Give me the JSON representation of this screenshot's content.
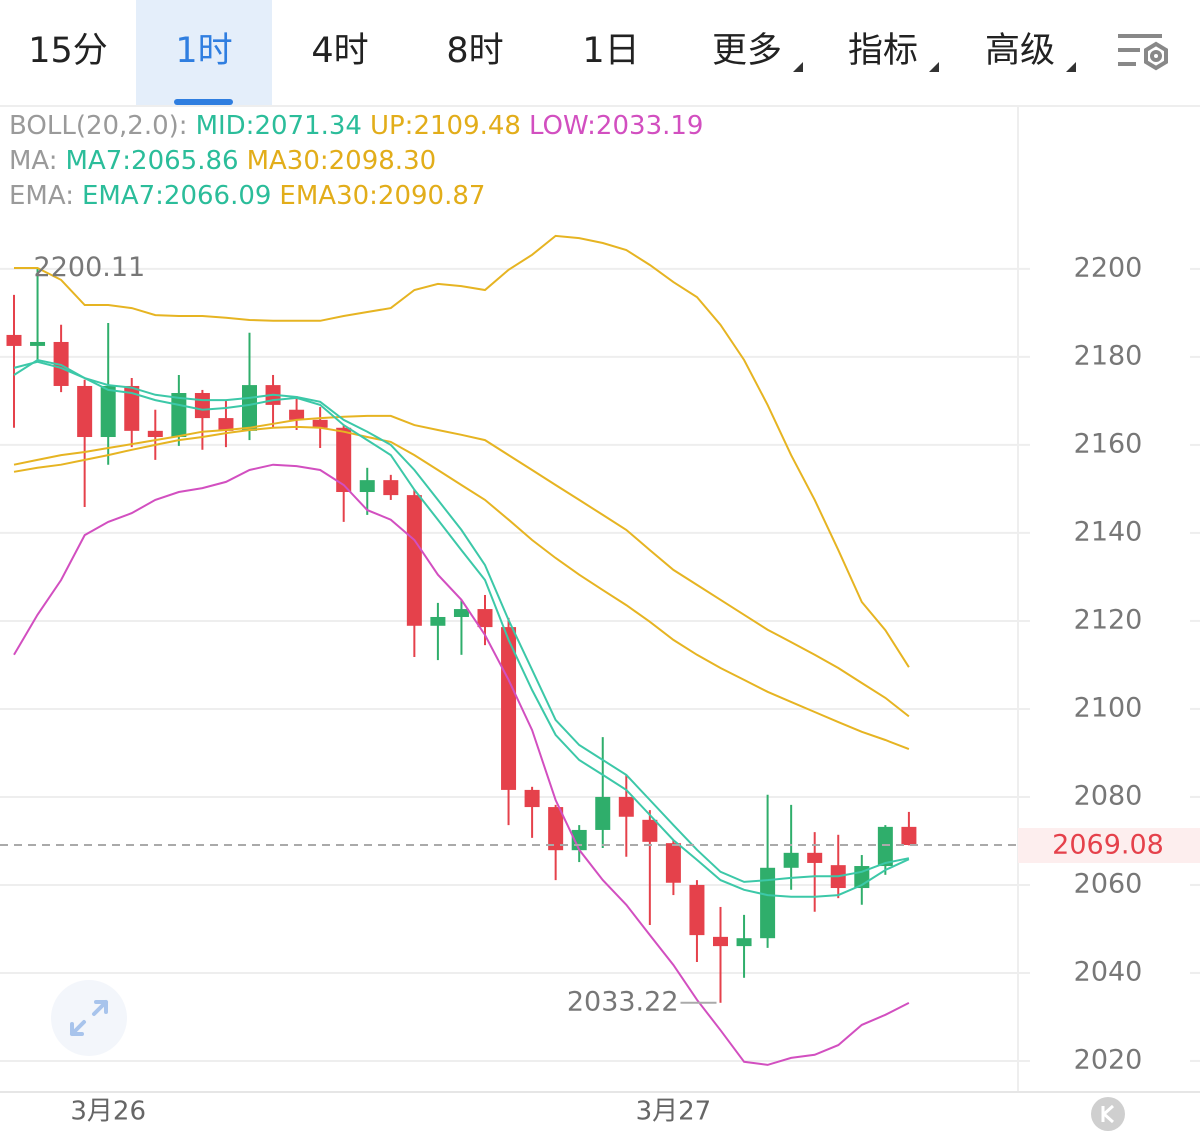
{
  "tabs": [
    "15分",
    "1时",
    "4时",
    "8时",
    "1日"
  ],
  "menus": [
    "更多",
    "指标",
    "高级"
  ],
  "legend": [
    [
      {
        "text": "BOLL(20,2.0):",
        "color": "#9a9a9a"
      },
      {
        "text": "MID:2071.34",
        "color": "#2bbd9a"
      },
      {
        "text": "UP:2109.48",
        "color": "#e2ad1a"
      },
      {
        "text": "LOW:2033.19",
        "color": "#d24fc0"
      }
    ],
    [
      {
        "text": "MA:",
        "color": "#9a9a9a"
      },
      {
        "text": "MA7:2065.86",
        "color": "#2bbd9a"
      },
      {
        "text": "MA30:2098.30",
        "color": "#e2ad1a"
      }
    ],
    [
      {
        "text": "EMA:",
        "color": "#9a9a9a"
      },
      {
        "text": "EMA7:2066.09",
        "color": "#2bbd9a"
      },
      {
        "text": "EMA30:2090.87",
        "color": "#e2ad1a"
      }
    ]
  ],
  "chart_data": {
    "type": "candlestick",
    "categories": [
      null,
      null,
      null,
      null,
      "3月26",
      null,
      null,
      null,
      null,
      null,
      null,
      null,
      null,
      null,
      null,
      null,
      null,
      null,
      null,
      null,
      null,
      null,
      null,
      null,
      null,
      null,
      null,
      null,
      "3月27",
      null,
      null,
      null,
      null,
      null,
      null,
      null,
      null,
      null,
      null
    ],
    "open": [
      2185.0,
      2182.5,
      2183.4,
      2173.4,
      2161.8,
      2173.4,
      2163.2,
      2161.8,
      2171.8,
      2166.1,
      2163.2,
      2173.6,
      2168.0,
      2165.7,
      2163.9,
      2149.3,
      2152.0,
      2148.6,
      2118.9,
      2120.9,
      2122.7,
      2118.6,
      2081.6,
      2077.7,
      2067.9,
      2072.5,
      2080.0,
      2074.8,
      2069.5,
      2060.0,
      2048.2,
      2046.1,
      2047.9,
      2063.9,
      2067.3,
      2064.5,
      2059.3,
      2064.3,
      2073.2
    ],
    "high": [
      2194.1,
      2200.11,
      2187.3,
      2174.8,
      2187.7,
      2175.2,
      2168.0,
      2175.9,
      2172.5,
      2170.2,
      2185.5,
      2175.9,
      2171.1,
      2168.6,
      2164.5,
      2154.8,
      2153.2,
      2149.8,
      2124.1,
      2124.8,
      2125.9,
      2120.7,
      2082.3,
      2078.2,
      2073.6,
      2093.6,
      2085.0,
      2077.0,
      2070.2,
      2061.1,
      2055.0,
      2053.2,
      2080.5,
      2078.2,
      2072.0,
      2071.4,
      2066.8,
      2073.6,
      2076.6
    ],
    "low": [
      2163.9,
      2179.0,
      2172.0,
      2145.9,
      2155.5,
      2159.5,
      2156.6,
      2159.8,
      2158.9,
      2159.5,
      2161.1,
      2163.9,
      2163.4,
      2159.3,
      2142.5,
      2144.1,
      2147.5,
      2111.8,
      2111.1,
      2112.3,
      2114.5,
      2073.6,
      2070.7,
      2061.1,
      2065.2,
      2068.4,
      2066.4,
      2050.9,
      2057.7,
      2042.5,
      2033.22,
      2038.9,
      2045.7,
      2058.9,
      2053.9,
      2057.0,
      2055.5,
      2062.3,
      2069.0
    ],
    "close": [
      2182.5,
      2183.4,
      2173.4,
      2161.8,
      2173.4,
      2163.2,
      2161.8,
      2171.8,
      2166.1,
      2163.2,
      2173.6,
      2169.1,
      2165.7,
      2163.9,
      2149.3,
      2152.0,
      2148.6,
      2118.9,
      2120.9,
      2122.7,
      2118.6,
      2081.6,
      2077.7,
      2067.9,
      2072.5,
      2080.0,
      2075.5,
      2069.8,
      2060.5,
      2048.6,
      2046.1,
      2047.9,
      2063.9,
      2067.3,
      2065.0,
      2059.3,
      2064.3,
      2073.2,
      2069.08
    ],
    "up_color": "#2fae6b",
    "down_color": "#e5414b",
    "lines": [
      {
        "color": "#e6b422",
        "values": [
          2200.2,
          2200.2,
          2197.5,
          2191.8,
          2191.8,
          2191.1,
          2189.5,
          2189.3,
          2189.3,
          2188.9,
          2188.4,
          2188.2,
          2188.2,
          2188.2,
          2189.3,
          2190.2,
          2191.1,
          2195.2,
          2196.6,
          2196.1,
          2195.2,
          2199.8,
          2203.2,
          2207.5,
          2207.0,
          2205.9,
          2204.3,
          2200.9,
          2197.0,
          2193.6,
          2187.3,
          2179.3,
          2169.1,
          2157.7,
          2147.5,
          2136.1,
          2124.3,
          2117.9,
          2109.48
        ]
      },
      {
        "color": "#d24fc0",
        "values": [
          2112.3,
          2121.4,
          2129.3,
          2139.5,
          2142.5,
          2144.5,
          2147.5,
          2149.3,
          2150.2,
          2151.6,
          2154.3,
          2155.5,
          2155.2,
          2154.3,
          2150.9,
          2145.2,
          2143.0,
          2138.4,
          2130.5,
          2124.8,
          2116.8,
          2106.6,
          2095.2,
          2079.3,
          2068.0,
          2061.1,
          2055.5,
          2048.6,
          2041.8,
          2033.9,
          2027.0,
          2019.8,
          2019.1,
          2020.7,
          2021.4,
          2023.6,
          2028.2,
          2030.5,
          2033.19
        ]
      },
      {
        "color": "#e6b422",
        "values": [
          2155.5,
          2156.6,
          2157.7,
          2158.4,
          2159.3,
          2160.2,
          2161.1,
          2162.0,
          2163.0,
          2163.4,
          2163.9,
          2164.8,
          2165.7,
          2166.1,
          2166.4,
          2166.6,
          2166.6,
          2164.5,
          2163.4,
          2162.3,
          2161.1,
          2157.7,
          2154.3,
          2150.9,
          2147.5,
          2144.1,
          2140.7,
          2136.1,
          2131.6,
          2128.2,
          2124.8,
          2121.4,
          2118.0,
          2115.2,
          2112.3,
          2109.3,
          2105.9,
          2102.5,
          2098.3
        ]
      },
      {
        "color": "#e6b422",
        "values": [
          2153.9,
          2154.8,
          2155.5,
          2156.6,
          2157.7,
          2158.9,
          2160.0,
          2161.1,
          2161.8,
          2162.7,
          2163.4,
          2163.9,
          2164.1,
          2163.9,
          2163.0,
          2161.8,
          2160.7,
          2157.7,
          2154.3,
          2150.9,
          2147.5,
          2143.0,
          2138.4,
          2134.3,
          2130.5,
          2127.0,
          2123.6,
          2119.8,
          2115.7,
          2112.3,
          2109.3,
          2106.6,
          2103.9,
          2101.6,
          2099.3,
          2097.0,
          2094.8,
          2092.95,
          2090.87
        ]
      },
      {
        "color": "#3cc8a8",
        "values": [
          2175.9,
          2179.3,
          2178.2,
          2175.2,
          2172.5,
          2171.8,
          2170.2,
          2169.1,
          2168.0,
          2168.4,
          2169.1,
          2170.2,
          2170.7,
          2169.1,
          2164.5,
          2161.1,
          2157.7,
          2149.8,
          2143.0,
          2136.1,
          2129.3,
          2115.7,
          2104.3,
          2094.1,
          2088.4,
          2085.0,
          2081.6,
          2075.9,
          2070.2,
          2065.7,
          2061.1,
          2058.9,
          2057.7,
          2057.3,
          2057.3,
          2057.7,
          2060.0,
          2063.4,
          2065.86
        ]
      },
      {
        "color": "#3cc8a8",
        "values": [
          2177.5,
          2178.9,
          2177.5,
          2175.2,
          2173.6,
          2173.0,
          2171.4,
          2170.7,
          2170.2,
          2170.2,
          2170.7,
          2171.4,
          2170.9,
          2169.8,
          2165.7,
          2163.0,
          2160.0,
          2154.3,
          2147.5,
          2140.7,
          2132.7,
          2120.2,
          2108.9,
          2097.5,
          2091.8,
          2088.4,
          2085.0,
          2079.3,
          2073.6,
          2068.0,
          2063.0,
          2060.7,
          2061.1,
          2061.6,
          2062.0,
          2062.0,
          2063.0,
          2065.0,
          2066.09
        ]
      }
    ],
    "ylim": [
      2013.4,
      2236.8
    ],
    "yticks": [
      2020,
      2040,
      2060,
      2080,
      2100,
      2120,
      2140,
      2160,
      2180,
      2200
    ],
    "grid": true
  }
}
